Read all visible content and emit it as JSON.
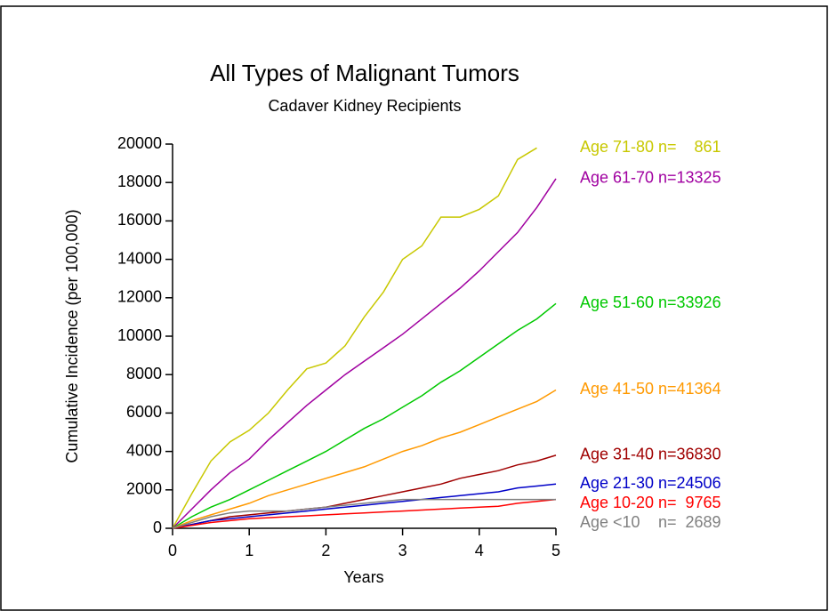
{
  "chart_data": {
    "type": "line",
    "title": "All Types of Malignant Tumors",
    "subtitle": "Cadaver Kidney Recipients",
    "xlabel": "Years",
    "ylabel": "Cumulative Incidence (per 100,000)",
    "x": [
      0,
      0.25,
      0.5,
      0.75,
      1,
      1.25,
      1.5,
      1.75,
      2,
      2.25,
      2.5,
      2.75,
      3,
      3.25,
      3.5,
      3.75,
      4,
      4.25,
      4.5,
      4.75,
      5
    ],
    "xlim": [
      0,
      5
    ],
    "xticks": [
      0,
      1,
      2,
      3,
      4,
      5
    ],
    "ylim": [
      0,
      20000
    ],
    "yticks": [
      0,
      2000,
      4000,
      6000,
      8000,
      10000,
      12000,
      14000,
      16000,
      18000,
      20000
    ],
    "series": [
      {
        "name": "Age 71-80",
        "n": "n=    861",
        "color": "#c8c800",
        "values": [
          0,
          1800,
          3500,
          4500,
          5100,
          6000,
          7200,
          8300,
          8600,
          9500,
          11000,
          12300,
          14000,
          14700,
          16200,
          16200,
          16600,
          17300,
          19200,
          19800,
          null
        ]
      },
      {
        "name": "Age 61-70",
        "n": "n=13325",
        "color": "#a000a0",
        "values": [
          0,
          1000,
          2000,
          2900,
          3600,
          4600,
          5500,
          6400,
          7200,
          8000,
          8700,
          9400,
          10100,
          10900,
          11700,
          12500,
          13400,
          14400,
          15400,
          16700,
          18200
        ]
      },
      {
        "name": "Age 51-60",
        "n": "n=33926",
        "color": "#00c800",
        "values": [
          0,
          600,
          1100,
          1500,
          2000,
          2500,
          3000,
          3500,
          4000,
          4600,
          5200,
          5700,
          6300,
          6900,
          7600,
          8200,
          8900,
          9600,
          10300,
          10900,
          11700
        ]
      },
      {
        "name": "Age 41-50",
        "n": "n=41364",
        "color": "#ff9900",
        "values": [
          0,
          400,
          700,
          1000,
          1300,
          1700,
          2000,
          2300,
          2600,
          2900,
          3200,
          3600,
          4000,
          4300,
          4700,
          5000,
          5400,
          5800,
          6200,
          6600,
          7200
        ]
      },
      {
        "name": "Age 31-40",
        "n": "n=36830",
        "color": "#a00000",
        "values": [
          0,
          200,
          400,
          600,
          700,
          800,
          900,
          1000,
          1100,
          1300,
          1500,
          1700,
          1900,
          2100,
          2300,
          2600,
          2800,
          3000,
          3300,
          3500,
          3800
        ]
      },
      {
        "name": "Age 21-30",
        "n": "n=24506",
        "color": "#0000c8",
        "values": [
          0,
          200,
          400,
          500,
          600,
          700,
          800,
          900,
          1000,
          1100,
          1200,
          1300,
          1400,
          1500,
          1600,
          1700,
          1800,
          1900,
          2100,
          2200,
          2300
        ]
      },
      {
        "name": "Age 10-20",
        "n": "n=  9765",
        "color": "#ff0000",
        "values": [
          0,
          150,
          300,
          400,
          500,
          550,
          600,
          650,
          700,
          750,
          800,
          850,
          900,
          950,
          1000,
          1050,
          1100,
          1150,
          1300,
          1400,
          1500
        ]
      },
      {
        "name": "Age <10",
        "n": "n=  2689",
        "color": "#808080",
        "values": [
          0,
          300,
          600,
          800,
          900,
          900,
          900,
          1000,
          1100,
          1200,
          1300,
          1400,
          1500,
          1500,
          1500,
          1500,
          1500,
          1500,
          1500,
          1500,
          1500
        ]
      }
    ]
  }
}
